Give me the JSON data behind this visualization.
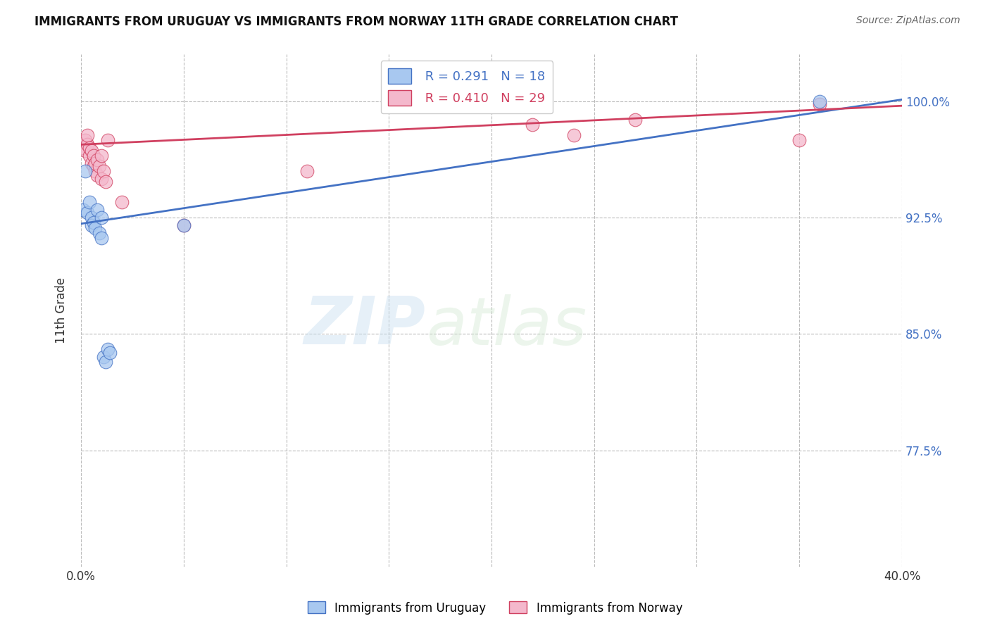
{
  "title": "IMMIGRANTS FROM URUGUAY VS IMMIGRANTS FROM NORWAY 11TH GRADE CORRELATION CHART",
  "source": "Source: ZipAtlas.com",
  "ylabel": "11th Grade",
  "xlim": [
    0.0,
    0.4
  ],
  "ylim": [
    0.7,
    1.03
  ],
  "ytick_values": [
    0.775,
    0.85,
    0.925,
    1.0
  ],
  "xtick_values": [
    0.0,
    0.05,
    0.1,
    0.15,
    0.2,
    0.25,
    0.3,
    0.35,
    0.4
  ],
  "uruguay_x": [
    0.001,
    0.002,
    0.003,
    0.004,
    0.005,
    0.005,
    0.006,
    0.007,
    0.008,
    0.009,
    0.01,
    0.01,
    0.011,
    0.012,
    0.013,
    0.014,
    0.05,
    0.36
  ],
  "uruguay_y": [
    0.93,
    0.955,
    0.928,
    0.935,
    0.925,
    0.92,
    0.922,
    0.918,
    0.93,
    0.915,
    0.912,
    0.925,
    0.835,
    0.832,
    0.84,
    0.838,
    0.92,
    1.0
  ],
  "norway_x": [
    0.001,
    0.002,
    0.002,
    0.003,
    0.003,
    0.004,
    0.004,
    0.005,
    0.005,
    0.006,
    0.006,
    0.007,
    0.007,
    0.008,
    0.008,
    0.009,
    0.01,
    0.01,
    0.011,
    0.012,
    0.013,
    0.02,
    0.05,
    0.11,
    0.22,
    0.24,
    0.27,
    0.35,
    0.36
  ],
  "norway_y": [
    0.97,
    0.975,
    0.968,
    0.972,
    0.978,
    0.965,
    0.97,
    0.96,
    0.968,
    0.958,
    0.965,
    0.955,
    0.96,
    0.952,
    0.962,
    0.958,
    0.95,
    0.965,
    0.955,
    0.948,
    0.975,
    0.935,
    0.92,
    0.955,
    0.985,
    0.978,
    0.988,
    0.975,
    0.998
  ],
  "uruguay_color": "#a8c8f0",
  "norway_color": "#f4b8cc",
  "uruguay_line_color": "#4472c4",
  "norway_line_color": "#d04060",
  "R_uruguay": 0.291,
  "N_uruguay": 18,
  "R_norway": 0.41,
  "N_norway": 29,
  "watermark_zip": "ZIP",
  "watermark_atlas": "atlas",
  "background_color": "#ffffff",
  "grid_color": "#bbbbbb"
}
